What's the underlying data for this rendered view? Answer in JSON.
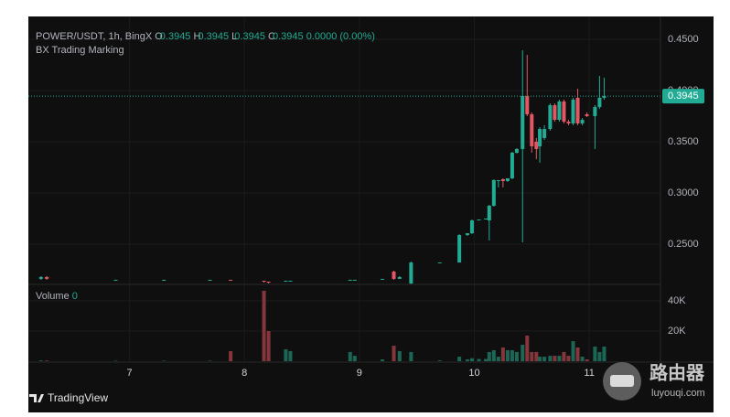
{
  "chart_data": {
    "type": "candlestick",
    "symbol": "POWER/USDT, 1h, BingX",
    "ohlc": [
      {
        "label": "O",
        "value": 0.3945
      },
      {
        "label": "H",
        "value": 0.3945
      },
      {
        "label": "L",
        "value": 0.3945
      },
      {
        "label": "C",
        "value": 0.3945
      }
    ],
    "change": "0.0000 (0.00%)",
    "indicator": "BX Trading Marking",
    "volume_title": "Volume",
    "volume_value": 0,
    "last_price": 0.3945,
    "brand": "TradingView",
    "up_color": "#22ab94",
    "down_color": "#e25763",
    "volume_up_color": "#1c6656",
    "volume_down_color": "#85363b",
    "grid": true,
    "xlim": [
      6.12,
      11.62
    ],
    "xticks": [
      7,
      8,
      9,
      10,
      11
    ],
    "ylim": [
      0.2116,
      0.4634
    ],
    "yticks": [
      {
        "value": 0.25,
        "label": "0.2500"
      },
      {
        "value": 0.3,
        "label": "0.3000"
      },
      {
        "value": 0.35,
        "label": "0.3500"
      },
      {
        "value": 0.4,
        "label": "0.4000"
      },
      {
        "value": 0.45,
        "label": "0.4500"
      }
    ],
    "volume_lim": [
      0,
      50300
    ],
    "volume_ticks": [
      {
        "value": 20000,
        "label": "20K"
      },
      {
        "value": 40000,
        "label": "40K"
      }
    ],
    "x": [
      6.23,
      6.28,
      6.88,
      7.3,
      7.7,
      7.88,
      8.17,
      8.21,
      8.36,
      8.4,
      8.92,
      8.96,
      9.2,
      9.3,
      9.35,
      9.45,
      9.7,
      9.87,
      9.94,
      9.98,
      10.04,
      10.1,
      10.13,
      10.17,
      10.21,
      10.25,
      10.29,
      10.33,
      10.37,
      10.42,
      10.46,
      10.5,
      10.54,
      10.57,
      10.61,
      10.66,
      10.7,
      10.74,
      10.78,
      10.82,
      10.86,
      10.9,
      10.94,
      10.98,
      11.05,
      11.09,
      11.13
    ],
    "open": [
      0.2161,
      0.2179,
      0.2143,
      0.2152,
      0.2152,
      0.2152,
      0.2143,
      0.2134,
      0.2134,
      0.2143,
      0.2143,
      0.2152,
      0.2152,
      0.2232,
      0.2161,
      0.2116,
      0.2321,
      0.2321,
      0.2589,
      0.2607,
      0.2732,
      0.2741,
      0.2732,
      0.2875,
      0.3116,
      0.3134,
      0.3116,
      0.3143,
      0.3393,
      0.3429,
      0.3946,
      0.3768,
      0.35,
      0.3455,
      0.3536,
      0.3625,
      0.3857,
      0.3714,
      0.3893,
      0.3696,
      0.3679,
      0.3929,
      0.3679,
      0.3768,
      0.375,
      0.3839,
      0.3929
    ],
    "high": [
      0.2188,
      0.2188,
      0.2152,
      0.2152,
      0.2152,
      0.2152,
      0.2143,
      0.2134,
      0.2143,
      0.2143,
      0.2152,
      0.2152,
      0.2161,
      0.2241,
      0.2188,
      0.233,
      0.2321,
      0.2598,
      0.2607,
      0.2741,
      0.2741,
      0.275,
      0.2884,
      0.3134,
      0.3125,
      0.3143,
      0.3143,
      0.3402,
      0.3438,
      0.4393,
      0.4348,
      0.3786,
      0.3536,
      0.3643,
      0.3661,
      0.3875,
      0.3875,
      0.3911,
      0.3911,
      0.3714,
      0.3929,
      0.4018,
      0.3732,
      0.3786,
      0.3857,
      0.4143,
      0.4125
    ],
    "low": [
      0.2152,
      0.2152,
      0.2143,
      0.2143,
      0.2152,
      0.2143,
      0.2125,
      0.2116,
      0.2134,
      0.2143,
      0.2143,
      0.2152,
      0.2152,
      0.2152,
      0.2161,
      0.2107,
      0.2321,
      0.2321,
      0.258,
      0.2598,
      0.2732,
      0.2741,
      0.2536,
      0.2866,
      0.3054,
      0.3054,
      0.3107,
      0.3134,
      0.3384,
      0.2518,
      0.375,
      0.3393,
      0.333,
      0.3295,
      0.3518,
      0.3607,
      0.3696,
      0.3696,
      0.3679,
      0.3661,
      0.3661,
      0.3661,
      0.3661,
      0.3741,
      0.3429,
      0.3821,
      0.3911
    ],
    "close": [
      0.2179,
      0.2161,
      0.2152,
      0.2152,
      0.2152,
      0.2143,
      0.2134,
      0.2125,
      0.2143,
      0.2143,
      0.2152,
      0.2152,
      0.2161,
      0.2161,
      0.2179,
      0.2321,
      0.2321,
      0.2589,
      0.2607,
      0.2732,
      0.2741,
      0.275,
      0.2875,
      0.3125,
      0.3125,
      0.3116,
      0.3143,
      0.3393,
      0.3429,
      0.3946,
      0.3768,
      0.3455,
      0.3429,
      0.3625,
      0.3625,
      0.3857,
      0.3714,
      0.3893,
      0.3696,
      0.3679,
      0.3911,
      0.3679,
      0.3714,
      0.375,
      0.3839,
      0.3929,
      0.3945
    ],
    "volume": [
      500,
      400,
      300,
      300,
      300,
      6700,
      46700,
      20000,
      7900,
      6700,
      6100,
      3600,
      1200,
      10300,
      6700,
      6100,
      500,
      3000,
      1200,
      2000,
      1500,
      1500,
      6100,
      7300,
      3000,
      9100,
      7300,
      7300,
      6100,
      10900,
      17000,
      6100,
      6100,
      3000,
      3000,
      3600,
      3600,
      3600,
      6100,
      3600,
      13300,
      9100,
      3000,
      1200,
      9700,
      6100,
      9700
    ]
  },
  "watermark": {
    "title": "路由器",
    "url": "luyouqi.com"
  }
}
